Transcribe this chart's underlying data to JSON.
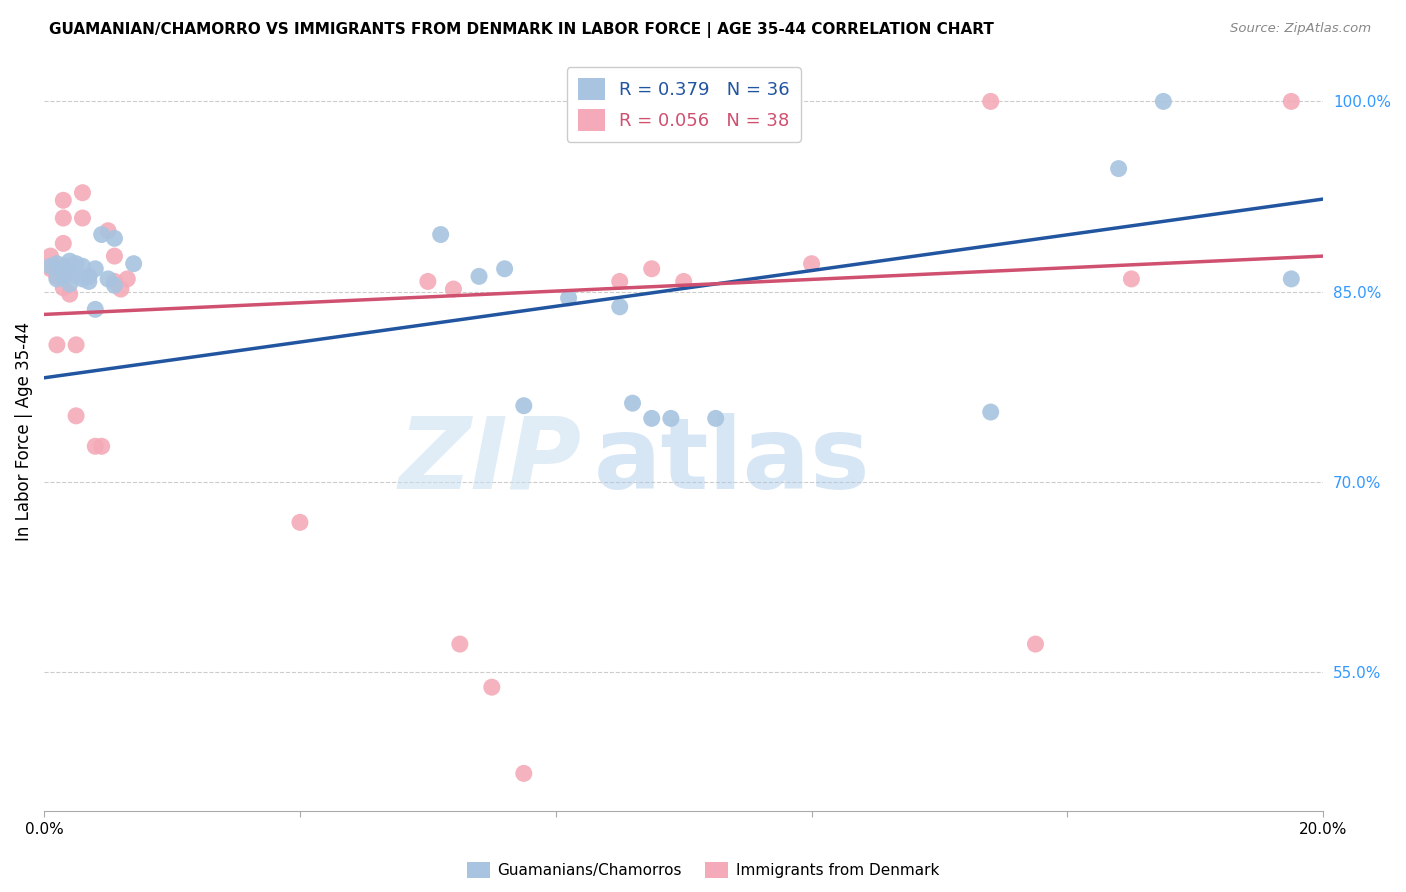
{
  "title": "GUAMANIAN/CHAMORRO VS IMMIGRANTS FROM DENMARK IN LABOR FORCE | AGE 35-44 CORRELATION CHART",
  "source": "Source: ZipAtlas.com",
  "ylabel": "In Labor Force | Age 35-44",
  "xlim": [
    0.0,
    0.2
  ],
  "ylim": [
    0.44,
    1.04
  ],
  "yticks": [
    0.55,
    0.7,
    0.85,
    1.0
  ],
  "ytick_labels": [
    "55.0%",
    "70.0%",
    "85.0%",
    "100.0%"
  ],
  "xticks": [
    0.0,
    0.04,
    0.08,
    0.12,
    0.16,
    0.2
  ],
  "xtick_labels": [
    "0.0%",
    "",
    "",
    "",
    "",
    "20.0%"
  ],
  "blue_R": 0.379,
  "blue_N": 36,
  "pink_R": 0.056,
  "pink_N": 38,
  "blue_color": "#a8c4e0",
  "pink_color": "#f4aab8",
  "blue_line_color": "#2255a0",
  "pink_line_color": "#d05070",
  "legend_label_blue": "Guamanians/Chamorros",
  "legend_label_pink": "Immigrants from Denmark",
  "blue_points_x": [
    0.001,
    0.002,
    0.002,
    0.003,
    0.003,
    0.003,
    0.004,
    0.004,
    0.004,
    0.005,
    0.005,
    0.006,
    0.006,
    0.007,
    0.007,
    0.008,
    0.008,
    0.009,
    0.01,
    0.011,
    0.011,
    0.014,
    0.062,
    0.068,
    0.072,
    0.075,
    0.082,
    0.09,
    0.092,
    0.095,
    0.098,
    0.105,
    0.148,
    0.168,
    0.175,
    0.195
  ],
  "blue_points_y": [
    0.87,
    0.872,
    0.86,
    0.868,
    0.865,
    0.862,
    0.874,
    0.87,
    0.856,
    0.872,
    0.863,
    0.87,
    0.86,
    0.858,
    0.862,
    0.836,
    0.868,
    0.895,
    0.86,
    0.892,
    0.855,
    0.872,
    0.895,
    0.862,
    0.868,
    0.76,
    0.845,
    0.838,
    0.762,
    0.75,
    0.75,
    0.75,
    0.755,
    0.947,
    1.0,
    0.86
  ],
  "pink_points_x": [
    0.001,
    0.001,
    0.002,
    0.002,
    0.002,
    0.003,
    0.003,
    0.003,
    0.003,
    0.003,
    0.004,
    0.004,
    0.005,
    0.005,
    0.006,
    0.006,
    0.007,
    0.008,
    0.009,
    0.01,
    0.011,
    0.011,
    0.012,
    0.013,
    0.04,
    0.06,
    0.064,
    0.065,
    0.07,
    0.075,
    0.09,
    0.095,
    0.1,
    0.12,
    0.148,
    0.155,
    0.17,
    0.195
  ],
  "pink_points_y": [
    0.878,
    0.868,
    0.868,
    0.862,
    0.808,
    0.922,
    0.908,
    0.888,
    0.87,
    0.853,
    0.866,
    0.848,
    0.808,
    0.752,
    0.928,
    0.908,
    0.862,
    0.728,
    0.728,
    0.898,
    0.878,
    0.858,
    0.852,
    0.86,
    0.668,
    0.858,
    0.852,
    0.572,
    0.538,
    0.47,
    0.858,
    0.868,
    0.858,
    0.872,
    1.0,
    0.572,
    0.86,
    1.0
  ],
  "blue_line_x0": 0.0,
  "blue_line_y0": 0.782,
  "blue_line_x1": 0.2,
  "blue_line_y1": 0.923,
  "pink_line_x0": 0.0,
  "pink_line_y0": 0.832,
  "pink_line_x1": 0.2,
  "pink_line_y1": 0.878
}
